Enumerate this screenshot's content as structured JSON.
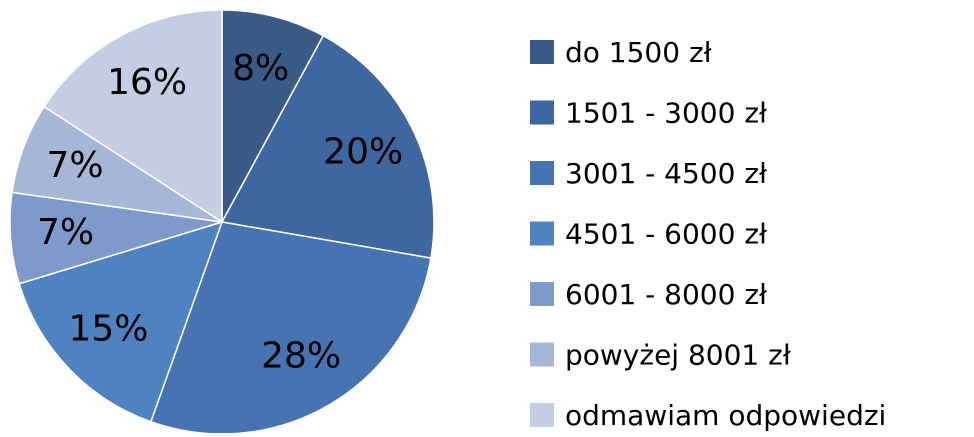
{
  "chart_data": {
    "type": "pie",
    "categories": [
      "do 1500 zł",
      "1501 - 3000 zł",
      "3001 - 4500 zł",
      "4501 - 6000 zł",
      "6001 - 8000 zł",
      "powyżej 8001 zł",
      "odmawiam odpowiedzi"
    ],
    "values": [
      8,
      20,
      28,
      15,
      7,
      7,
      16
    ],
    "value_labels": [
      "8%",
      "20%",
      "28%",
      "15%",
      "7%",
      "7%",
      "16%"
    ],
    "colors": [
      "#3a5a87",
      "#3e66a0",
      "#4674b2",
      "#4f82c0",
      "#7d9acb",
      "#a5b6d7",
      "#c4cee3"
    ],
    "legend": "right"
  }
}
